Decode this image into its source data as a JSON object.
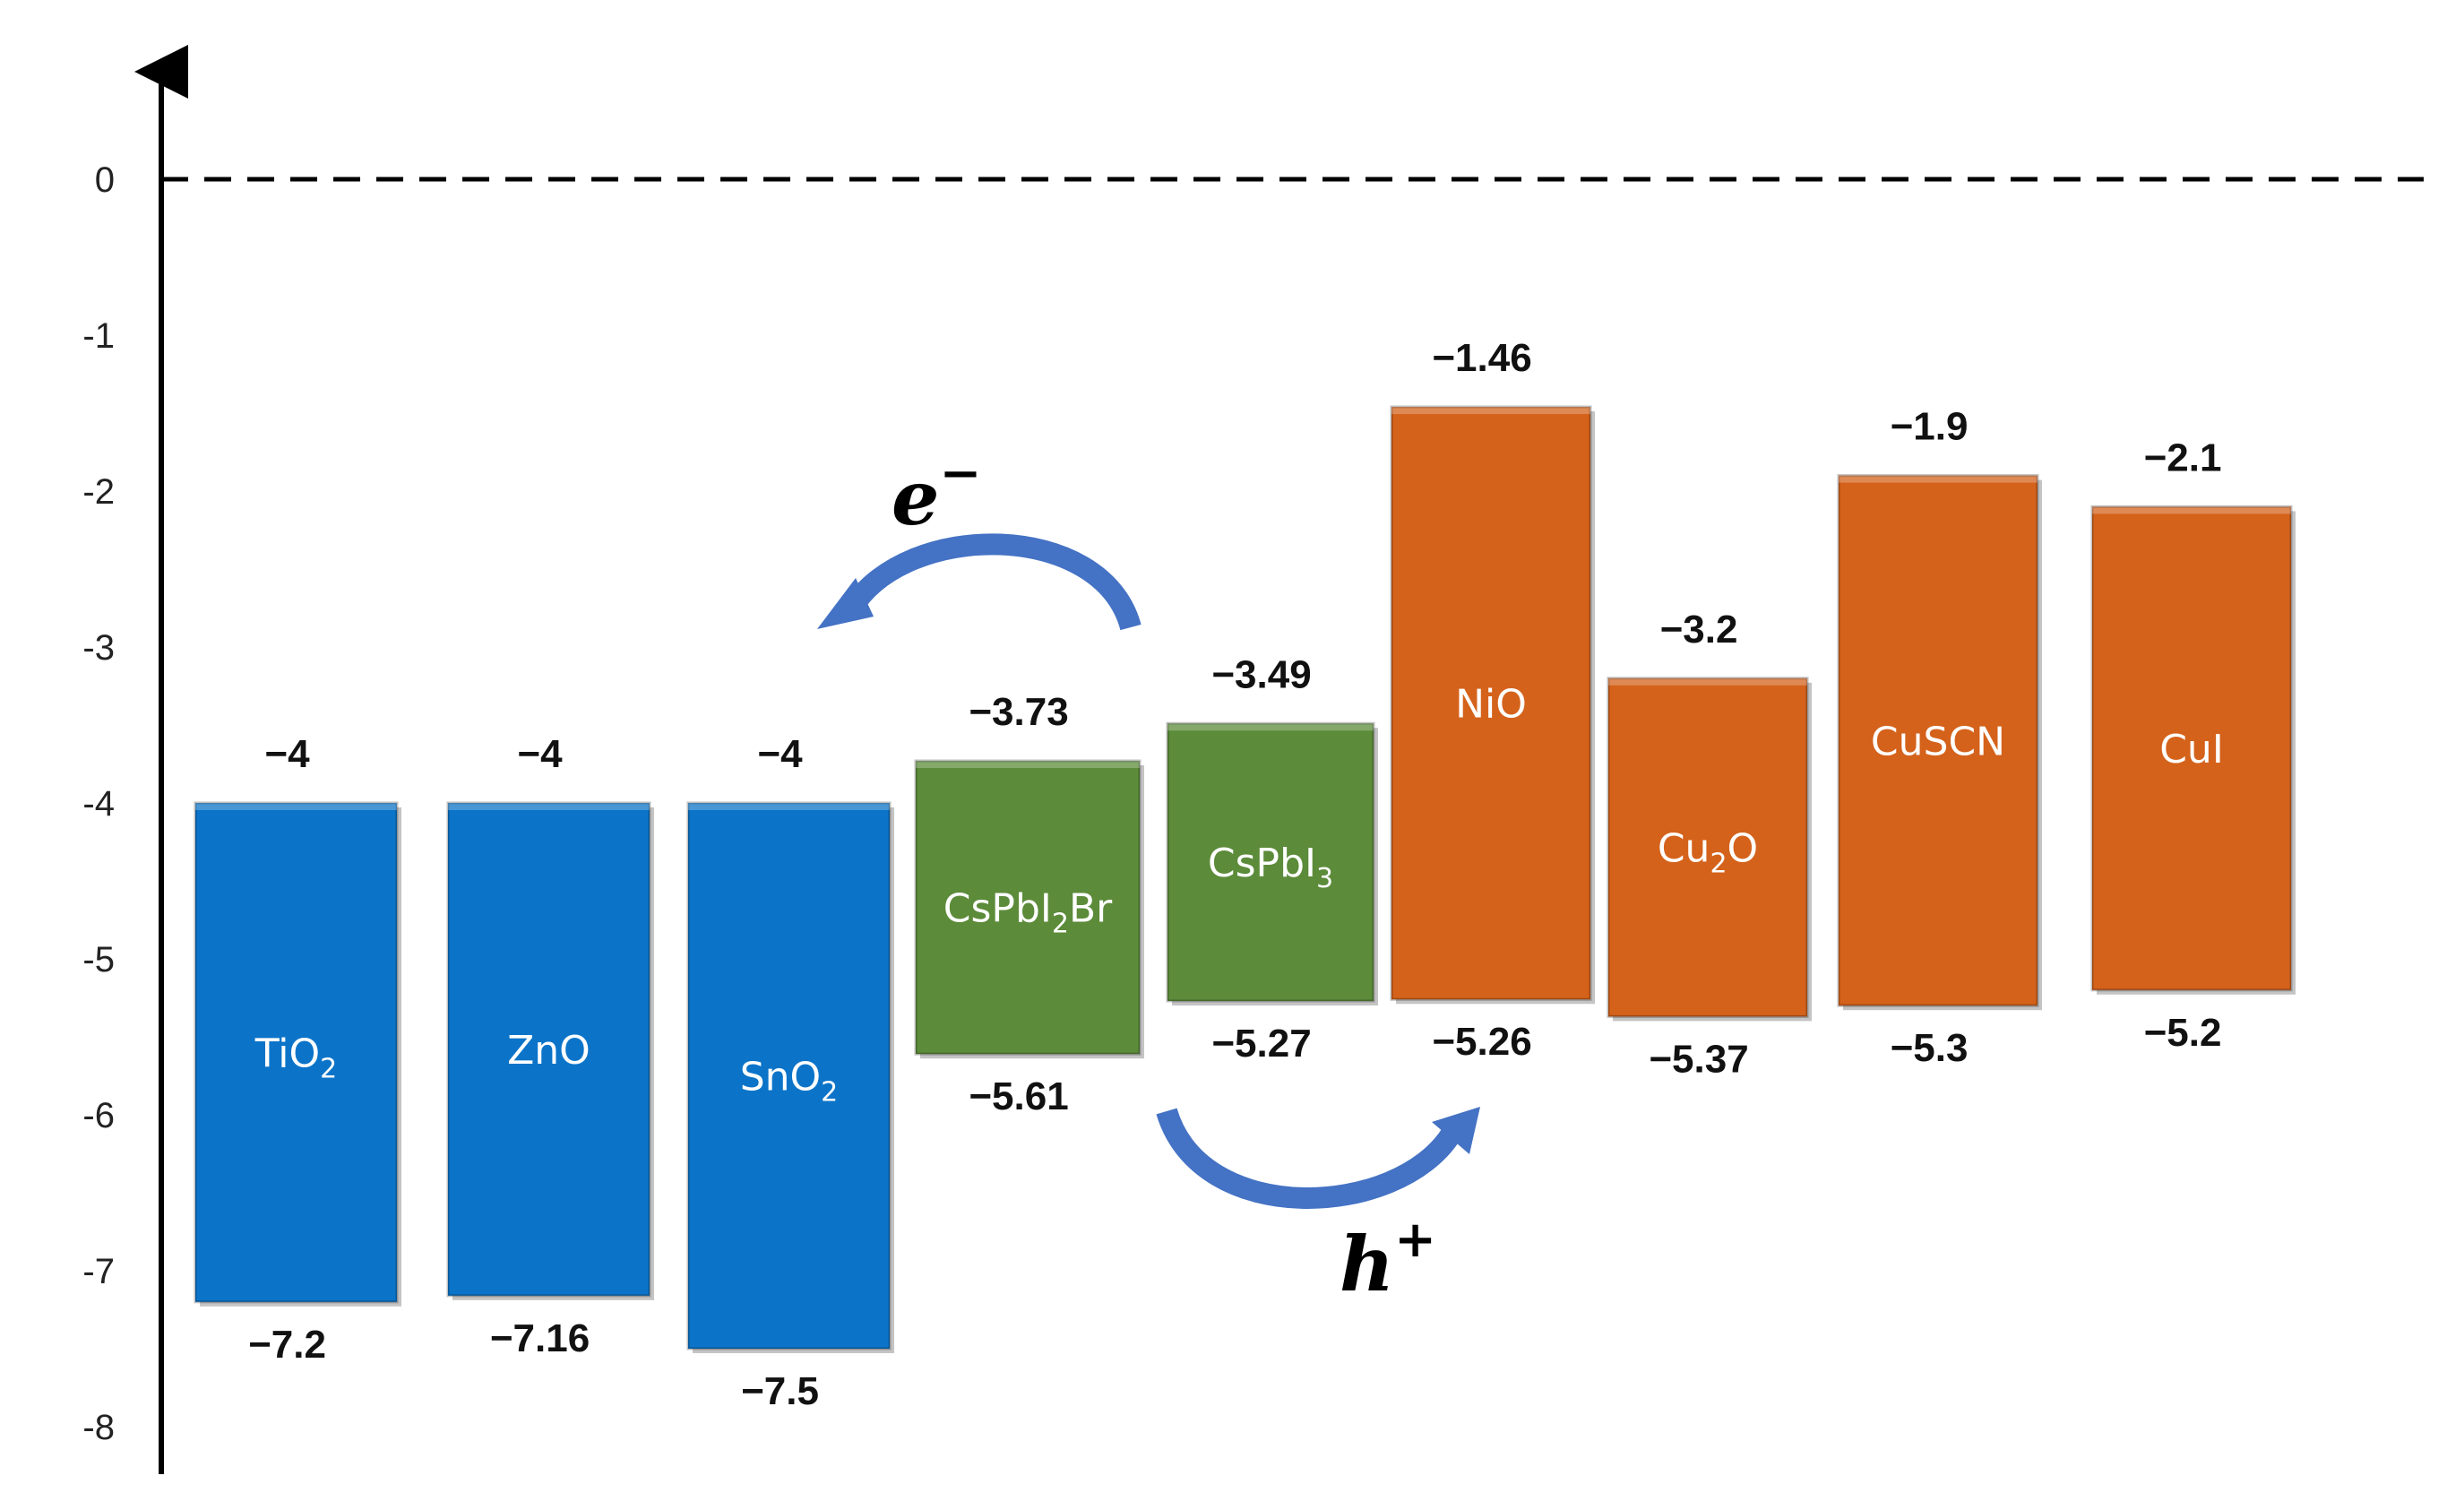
{
  "chart_data": {
    "type": "bar",
    "title": "",
    "xlabel": "",
    "ylabel": "",
    "ylim": [
      -8,
      0
    ],
    "yticks": [
      "0",
      "-1",
      "-2",
      "-3",
      "-4",
      "-5",
      "-6",
      "-7",
      "-8"
    ],
    "zero_line": "dashed",
    "grid": false,
    "colors": {
      "etl": "#0B74C9",
      "perovskite": "#5C8B3A",
      "htl": "#D4621B"
    },
    "bars": [
      {
        "name": "TiO",
        "sub": "2",
        "after": "",
        "top": -4,
        "bottom": -7.2,
        "top_label": "−4",
        "bottom_label": "−7.2",
        "group": "etl"
      },
      {
        "name": "ZnO",
        "sub": "",
        "after": "",
        "top": -4,
        "bottom": -7.16,
        "top_label": "−4",
        "bottom_label": "−7.16",
        "group": "etl"
      },
      {
        "name": "SnO",
        "sub": "2",
        "after": "",
        "top": -4,
        "bottom": -7.5,
        "top_label": "−4",
        "bottom_label": "−7.5",
        "group": "etl"
      },
      {
        "name": "CsPbI",
        "sub": "2",
        "after": "Br",
        "top": -3.73,
        "bottom": -5.61,
        "top_label": "−3.73",
        "bottom_label": "−5.61",
        "group": "perovskite"
      },
      {
        "name": "CsPbI",
        "sub": "3",
        "after": "",
        "top": -3.49,
        "bottom": -5.27,
        "top_label": "−3.49",
        "bottom_label": "−5.27",
        "group": "perovskite"
      },
      {
        "name": "NiO",
        "sub": "",
        "after": "",
        "top": -1.46,
        "bottom": -5.26,
        "top_label": "−1.46",
        "bottom_label": "−5.26",
        "group": "htl"
      },
      {
        "name": "Cu",
        "sub": "2",
        "after": "O",
        "top": -3.2,
        "bottom": -5.37,
        "top_label": "−3.2",
        "bottom_label": "−5.37",
        "group": "htl"
      },
      {
        "name": "CuSCN",
        "sub": "",
        "after": "",
        "top": -1.9,
        "bottom": -5.3,
        "top_label": "−1.9",
        "bottom_label": "−5.3",
        "group": "htl"
      },
      {
        "name": "CuI",
        "sub": "",
        "after": "",
        "top": -2.1,
        "bottom": -5.2,
        "top_label": "−2.1",
        "bottom_label": "−5.2",
        "group": "htl"
      }
    ],
    "annotations": [
      {
        "text": "e",
        "sup": "−",
        "arrow": "curved",
        "direction": "left"
      },
      {
        "text": "h",
        "sup": "+",
        "arrow": "curved",
        "direction": "right"
      }
    ]
  }
}
